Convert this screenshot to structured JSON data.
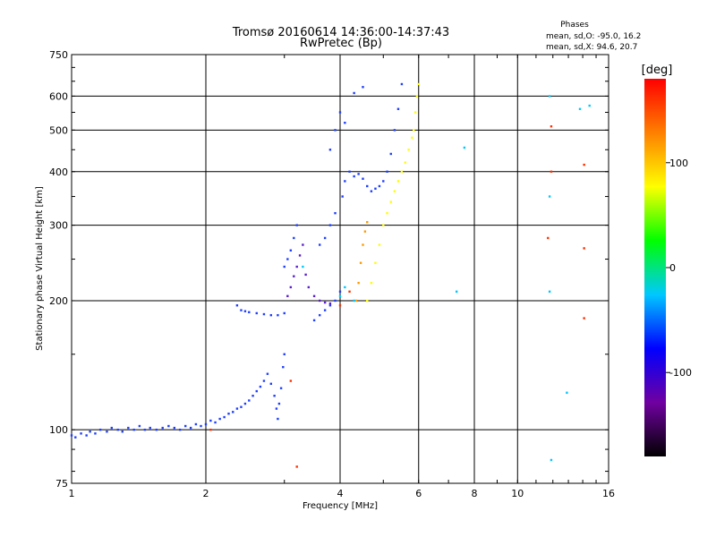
{
  "chart_data": {
    "type": "scatter",
    "title": "Tromsø 20160614 14:36:00-14:37:43",
    "subtitle": "RwPretec (Bp)",
    "xlabel": "Frequency [MHz]",
    "ylabel": "Stationary phase Virtual Height [km]",
    "x_scale": "log",
    "y_scale": "log",
    "xlim": [
      1,
      16
    ],
    "ylim": [
      75,
      750
    ],
    "x_ticks": [
      1,
      2,
      4,
      6,
      8,
      10,
      16
    ],
    "x_tick_labels": [
      "1",
      "2",
      "4",
      "6",
      "8",
      "10",
      "16"
    ],
    "y_ticks": [
      75,
      100,
      200,
      300,
      400,
      500,
      600,
      750
    ],
    "y_tick_labels": [
      "75",
      "100",
      "200",
      "300",
      "400",
      "500",
      "600",
      "750"
    ],
    "grid": true,
    "stats": {
      "heading": "Phases",
      "line_o": "mean, sd,O: -95.0, 16.2",
      "line_x": "mean, sd,X:  94.6, 20.7"
    },
    "colorbar": {
      "label": "[deg]",
      "range": [
        -180,
        180
      ],
      "tick_values": [
        -100,
        0,
        100
      ],
      "tick_labels": [
        "-100",
        "0",
        "100"
      ],
      "colors": [
        "#000000",
        "#7000a0",
        "#0000ff",
        "#00c8ff",
        "#00ff00",
        "#ffff00",
        "#ff8000",
        "#ff0000"
      ]
    },
    "series": [
      {
        "name": "",
        "phase": -100,
        "color": "#1f3fff",
        "points": [
          [
            1.0,
            97
          ],
          [
            1.02,
            96
          ],
          [
            1.05,
            98
          ],
          [
            1.08,
            97
          ],
          [
            1.1,
            99
          ],
          [
            1.13,
            98
          ],
          [
            1.16,
            100
          ],
          [
            1.2,
            99
          ],
          [
            1.23,
            101
          ],
          [
            1.27,
            100
          ],
          [
            1.3,
            99
          ],
          [
            1.34,
            101
          ],
          [
            1.38,
            100
          ],
          [
            1.42,
            102
          ],
          [
            1.46,
            100
          ],
          [
            1.5,
            101
          ],
          [
            1.55,
            100
          ],
          [
            1.6,
            101
          ],
          [
            1.65,
            102
          ],
          [
            1.7,
            101
          ],
          [
            1.75,
            100
          ],
          [
            1.8,
            102
          ],
          [
            1.85,
            101
          ],
          [
            1.9,
            103
          ],
          [
            1.95,
            102
          ],
          [
            2.0,
            103
          ],
          [
            2.05,
            105
          ],
          [
            2.1,
            104
          ],
          [
            2.15,
            106
          ],
          [
            2.2,
            107
          ],
          [
            2.25,
            109
          ],
          [
            2.3,
            110
          ],
          [
            2.35,
            112
          ],
          [
            2.4,
            113
          ],
          [
            2.45,
            115
          ],
          [
            2.5,
            117
          ],
          [
            2.55,
            120
          ],
          [
            2.6,
            123
          ],
          [
            2.65,
            126
          ],
          [
            2.7,
            130
          ],
          [
            2.75,
            135
          ],
          [
            2.8,
            128
          ],
          [
            2.85,
            120
          ],
          [
            2.88,
            112
          ],
          [
            2.9,
            106
          ],
          [
            2.92,
            115
          ],
          [
            2.95,
            125
          ],
          [
            2.98,
            140
          ],
          [
            3.0,
            150
          ],
          [
            2.35,
            195
          ],
          [
            2.4,
            190
          ],
          [
            2.45,
            189
          ],
          [
            2.5,
            188
          ],
          [
            2.6,
            187
          ],
          [
            2.7,
            186
          ],
          [
            2.8,
            185
          ],
          [
            2.9,
            185
          ],
          [
            3.0,
            187
          ],
          [
            3.0,
            240
          ],
          [
            3.05,
            250
          ],
          [
            3.1,
            262
          ],
          [
            3.15,
            280
          ],
          [
            3.2,
            300
          ],
          [
            3.5,
            180
          ],
          [
            3.6,
            185
          ],
          [
            3.7,
            190
          ],
          [
            3.8,
            195
          ],
          [
            3.9,
            200
          ],
          [
            4.0,
            210
          ],
          [
            3.6,
            270
          ],
          [
            3.7,
            280
          ],
          [
            3.8,
            300
          ],
          [
            3.9,
            320
          ],
          [
            4.05,
            350
          ],
          [
            4.1,
            380
          ],
          [
            4.2,
            400
          ],
          [
            4.3,
            390
          ],
          [
            4.4,
            395
          ],
          [
            4.5,
            385
          ],
          [
            4.6,
            370
          ],
          [
            4.7,
            360
          ],
          [
            4.8,
            365
          ],
          [
            4.9,
            370
          ],
          [
            5.0,
            380
          ],
          [
            5.1,
            400
          ],
          [
            5.2,
            440
          ],
          [
            5.3,
            500
          ],
          [
            5.4,
            560
          ],
          [
            5.5,
            640
          ],
          [
            3.8,
            450
          ],
          [
            3.9,
            500
          ],
          [
            4.0,
            550
          ],
          [
            4.1,
            520
          ],
          [
            4.3,
            610
          ],
          [
            4.5,
            630
          ]
        ]
      },
      {
        "name": "",
        "phase": -140,
        "color": "#5a1fcc",
        "points": [
          [
            3.05,
            205
          ],
          [
            3.1,
            215
          ],
          [
            3.15,
            228
          ],
          [
            3.2,
            240
          ],
          [
            3.25,
            255
          ],
          [
            3.3,
            270
          ],
          [
            3.35,
            230
          ],
          [
            3.4,
            215
          ],
          [
            3.5,
            205
          ],
          [
            3.6,
            200
          ],
          [
            3.7,
            198
          ],
          [
            3.8,
            197
          ]
        ]
      },
      {
        "name": "",
        "phase": 100,
        "color": "#ffff00",
        "points": [
          [
            4.6,
            200
          ],
          [
            4.7,
            220
          ],
          [
            4.8,
            245
          ],
          [
            4.9,
            270
          ],
          [
            5.0,
            300
          ],
          [
            5.1,
            320
          ],
          [
            5.2,
            340
          ],
          [
            5.3,
            360
          ],
          [
            5.4,
            380
          ],
          [
            5.5,
            400
          ],
          [
            5.6,
            420
          ],
          [
            5.7,
            450
          ],
          [
            5.8,
            480
          ],
          [
            5.85,
            500
          ],
          [
            5.9,
            550
          ],
          [
            5.95,
            600
          ],
          [
            6.0,
            640
          ]
        ]
      },
      {
        "name": "",
        "phase": 130,
        "color": "#ff9a00",
        "points": [
          [
            4.35,
            200
          ],
          [
            4.4,
            220
          ],
          [
            4.45,
            245
          ],
          [
            4.5,
            270
          ],
          [
            4.55,
            290
          ],
          [
            4.6,
            305
          ]
        ]
      },
      {
        "name": "",
        "phase": -30,
        "color": "#00c8ff",
        "points": [
          [
            3.3,
            240
          ],
          [
            4.0,
            205
          ],
          [
            4.1,
            215
          ],
          [
            4.3,
            200
          ],
          [
            7.6,
            455
          ],
          [
            7.3,
            210
          ],
          [
            11.8,
            600
          ],
          [
            11.8,
            350
          ],
          [
            11.8,
            210
          ],
          [
            14.5,
            570
          ],
          [
            12.9,
            122
          ],
          [
            13.8,
            560
          ],
          [
            11.9,
            85
          ]
        ]
      },
      {
        "name": "",
        "phase": 160,
        "color": "#ff3000",
        "points": [
          [
            4.0,
            195
          ],
          [
            4.2,
            210
          ],
          [
            11.9,
            510
          ],
          [
            11.9,
            400
          ],
          [
            14.1,
            415
          ],
          [
            14.1,
            265
          ],
          [
            14.1,
            182
          ],
          [
            3.1,
            130
          ],
          [
            3.2,
            82
          ],
          [
            2.05,
            100
          ],
          [
            11.7,
            280
          ]
        ]
      }
    ]
  }
}
